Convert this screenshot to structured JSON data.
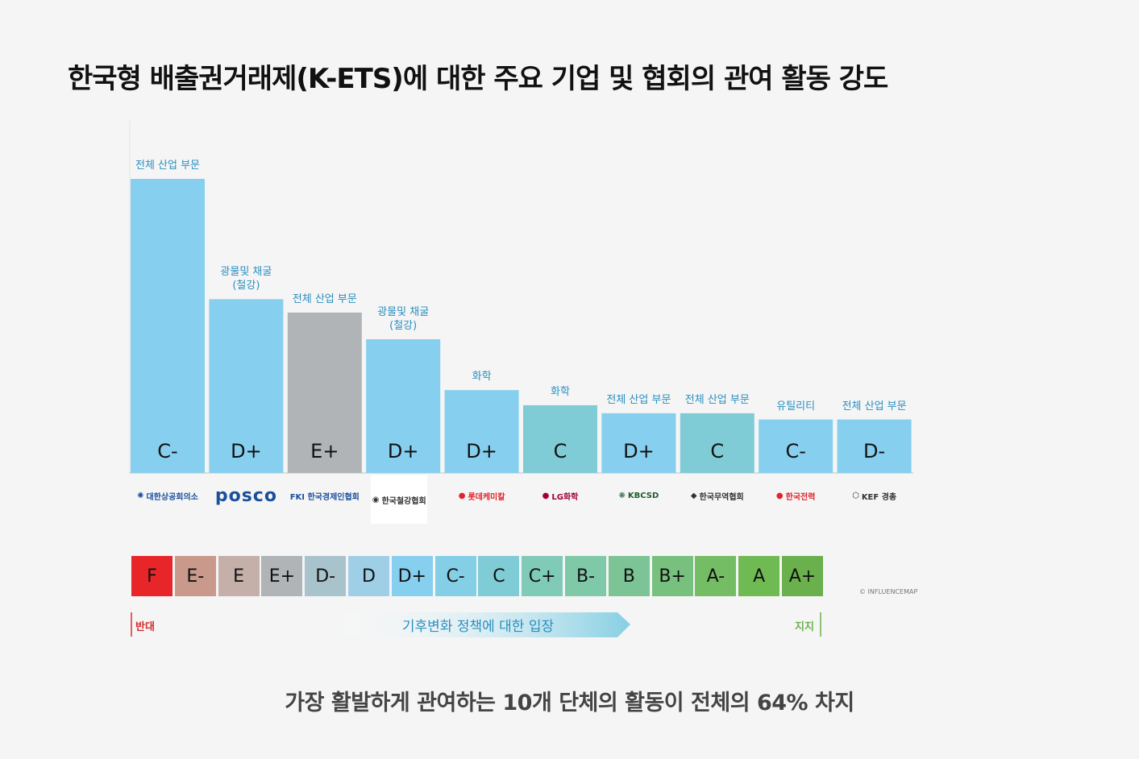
{
  "title": "한국형 배출권거래제(K-ETS)에 대한 주요 기업 및 협회의 관여 활동 강도",
  "subtitle": "가장 활발하게 관여하는 10개 단체의 활동이 전체의 64% 차지",
  "copyright": "© INFLUENCEMAP",
  "scale_labels": {
    "oppose": "반대",
    "support": "지지",
    "arrow": "기후변화 정책에 대한 입장"
  },
  "colors": {
    "bar_blue": "#87cfee",
    "bar_teal": "#7fcbd6",
    "bar_gray": "#b0b4b7",
    "sector_text": "#2a8fc0"
  },
  "scale": [
    {
      "grade": "F",
      "color": "#e8262a"
    },
    {
      "grade": "E-",
      "color": "#c99a8c"
    },
    {
      "grade": "E",
      "color": "#c4b0a8"
    },
    {
      "grade": "E+",
      "color": "#b0b4b7"
    },
    {
      "grade": "D-",
      "color": "#a9c3cc"
    },
    {
      "grade": "D",
      "color": "#9fcfe6"
    },
    {
      "grade": "D+",
      "color": "#87cfee"
    },
    {
      "grade": "C-",
      "color": "#84cfe6"
    },
    {
      "grade": "C",
      "color": "#7fcbd6"
    },
    {
      "grade": "C+",
      "color": "#7fcbb8"
    },
    {
      "grade": "B-",
      "color": "#7fc8a8"
    },
    {
      "grade": "B",
      "color": "#7cc496"
    },
    {
      "grade": "B+",
      "color": "#78c07e"
    },
    {
      "grade": "A-",
      "color": "#74bd64"
    },
    {
      "grade": "A",
      "color": "#70ba54"
    },
    {
      "grade": "A+",
      "color": "#6ab04c"
    }
  ],
  "chart_data": {
    "type": "bar",
    "title": "한국형 배출권거래제(K-ETS)에 대한 주요 기업 및 협회의 관여 활동 강도",
    "categories": [
      "대한상공회의소",
      "POSCO",
      "FKI 한국경제인협회",
      "한국철강협회",
      "롯데케미칼",
      "LG화학",
      "KBCSD",
      "한국무역협회",
      "한국전력",
      "KEF 경총"
    ],
    "sectors": [
      "전체 산업 부문",
      "광물및 채굴\n(철강)",
      "전체 산업 부문",
      "광물및 채굴\n(철강)",
      "화학",
      "화학",
      "전체 산업 부문",
      "전체 산업 부문",
      "유틸리티",
      "전체 산업 부문"
    ],
    "grades": [
      "C-",
      "D+",
      "E+",
      "D+",
      "D+",
      "C",
      "D+",
      "C",
      "C-",
      "D-"
    ],
    "values": [
      33,
      19.5,
      18,
      15,
      9.3,
      7.6,
      6.7,
      6.7,
      6,
      6
    ],
    "ylim": [
      0,
      35
    ],
    "grid": false
  },
  "logos": [
    {
      "text": "대한상공회의소",
      "color": "#1a4f9c",
      "mark": "✺"
    },
    {
      "text": "posco",
      "color": "#1a4f9c",
      "mark": ""
    },
    {
      "text": "FKI 한국경제인협회",
      "color": "#1a4f9c",
      "mark": ""
    },
    {
      "text": "한국철강협회",
      "color": "#333",
      "mark": "◉"
    },
    {
      "text": "롯데케미칼",
      "color": "#e2242c",
      "mark": "●"
    },
    {
      "text": "LG화학",
      "color": "#a50034",
      "mark": "●"
    },
    {
      "text": "KBCSD",
      "color": "#1f5c2e",
      "mark": "❋"
    },
    {
      "text": "한국무역협회",
      "color": "#333",
      "mark": "◆"
    },
    {
      "text": "한국전력",
      "color": "#e2242c",
      "mark": "●"
    },
    {
      "text": "KEF 경총",
      "color": "#333",
      "mark": "⬡"
    }
  ]
}
